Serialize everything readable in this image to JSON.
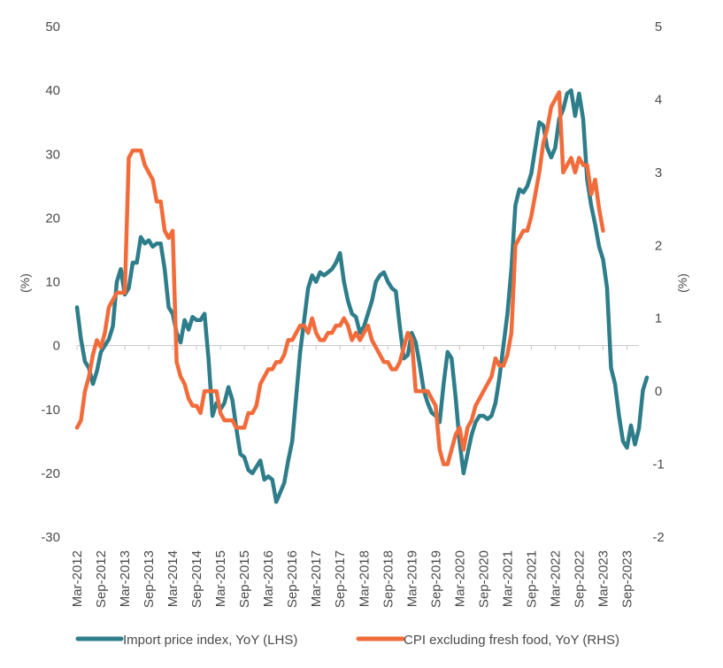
{
  "chart_data": {
    "type": "line",
    "left_axis": {
      "label": "(%)",
      "ylim": [
        -30,
        50
      ],
      "ticks": [
        "50",
        "40",
        "30",
        "20",
        "10",
        "0",
        "-10",
        "-20",
        "-30"
      ]
    },
    "right_axis": {
      "label": "(%)",
      "ylim": [
        -2,
        5
      ],
      "ticks": [
        "5",
        "4",
        "3",
        "2",
        "1",
        "0",
        "-1",
        "-2"
      ]
    },
    "x_ticks": [
      "Mar-2012",
      "Sep-2012",
      "Mar-2013",
      "Sep-2013",
      "Mar-2014",
      "Sep-2014",
      "Mar-2015",
      "Sep-2015",
      "Mar-2016",
      "Sep-2016",
      "Mar-2017",
      "Sep-2017",
      "Mar-2018",
      "Sep-2018",
      "Mar-2019",
      "Sep-2019",
      "Mar-2020",
      "Sep-2020",
      "Mar-2021",
      "Sep-2021",
      "Mar-2022",
      "Sep-2022",
      "Mar-2023",
      "Sep-2023"
    ],
    "x_range": [
      "2012-03",
      "2023-12"
    ],
    "grid": false,
    "legend_position": "bottom",
    "series": [
      {
        "name": "Import price index, YoY (LHS)",
        "axis": "left",
        "color": "#2e7d8a",
        "points": [
          [
            "2012-03",
            6
          ],
          [
            "2012-04",
            1
          ],
          [
            "2012-05",
            -2.5
          ],
          [
            "2012-06",
            -3.5
          ],
          [
            "2012-07",
            -6
          ],
          [
            "2012-08",
            -4
          ],
          [
            "2012-09",
            -1
          ],
          [
            "2012-10",
            0
          ],
          [
            "2012-11",
            1
          ],
          [
            "2012-12",
            3
          ],
          [
            "2013-01",
            10
          ],
          [
            "2013-02",
            12
          ],
          [
            "2013-03",
            8
          ],
          [
            "2013-04",
            9
          ],
          [
            "2013-05",
            13
          ],
          [
            "2013-06",
            13
          ],
          [
            "2013-07",
            17
          ],
          [
            "2013-08",
            16
          ],
          [
            "2013-09",
            16.5
          ],
          [
            "2013-10",
            15.5
          ],
          [
            "2013-11",
            16
          ],
          [
            "2013-12",
            16
          ],
          [
            "2014-01",
            12
          ],
          [
            "2014-02",
            6
          ],
          [
            "2014-03",
            5
          ],
          [
            "2014-04",
            2
          ],
          [
            "2014-05",
            0.5
          ],
          [
            "2014-06",
            4
          ],
          [
            "2014-07",
            2.5
          ],
          [
            "2014-08",
            4.5
          ],
          [
            "2014-09",
            4
          ],
          [
            "2014-10",
            4
          ],
          [
            "2014-11",
            5
          ],
          [
            "2014-12",
            -2
          ],
          [
            "2015-01",
            -11
          ],
          [
            "2015-02",
            -9
          ],
          [
            "2015-03",
            -10
          ],
          [
            "2015-04",
            -9
          ],
          [
            "2015-05",
            -6.5
          ],
          [
            "2015-06",
            -8.5
          ],
          [
            "2015-07",
            -13
          ],
          [
            "2015-08",
            -17
          ],
          [
            "2015-09",
            -17.5
          ],
          [
            "2015-10",
            -19.5
          ],
          [
            "2015-11",
            -20
          ],
          [
            "2015-12",
            -19
          ],
          [
            "2016-01",
            -18
          ],
          [
            "2016-02",
            -21
          ],
          [
            "2016-03",
            -20.5
          ],
          [
            "2016-04",
            -21
          ],
          [
            "2016-05",
            -24.5
          ],
          [
            "2016-06",
            -23
          ],
          [
            "2016-07",
            -21.5
          ],
          [
            "2016-08",
            -18
          ],
          [
            "2016-09",
            -15
          ],
          [
            "2016-10",
            -8
          ],
          [
            "2016-11",
            -1
          ],
          [
            "2016-12",
            4
          ],
          [
            "2017-01",
            9
          ],
          [
            "2017-02",
            11
          ],
          [
            "2017-03",
            10
          ],
          [
            "2017-04",
            11.5
          ],
          [
            "2017-05",
            11
          ],
          [
            "2017-06",
            11.5
          ],
          [
            "2017-07",
            12
          ],
          [
            "2017-08",
            13
          ],
          [
            "2017-09",
            14.5
          ],
          [
            "2017-10",
            10
          ],
          [
            "2017-11",
            7
          ],
          [
            "2017-12",
            5
          ],
          [
            "2018-01",
            4.5
          ],
          [
            "2018-02",
            2
          ],
          [
            "2018-03",
            3
          ],
          [
            "2018-04",
            5
          ],
          [
            "2018-05",
            7
          ],
          [
            "2018-06",
            10
          ],
          [
            "2018-07",
            11
          ],
          [
            "2018-08",
            11.5
          ],
          [
            "2018-09",
            10
          ],
          [
            "2018-10",
            9
          ],
          [
            "2018-11",
            8.5
          ],
          [
            "2018-12",
            3
          ],
          [
            "2019-01",
            -2
          ],
          [
            "2019-02",
            -1.5
          ],
          [
            "2019-03",
            2
          ],
          [
            "2019-04",
            0.5
          ],
          [
            "2019-05",
            -3
          ],
          [
            "2019-06",
            -7
          ],
          [
            "2019-07",
            -9
          ],
          [
            "2019-08",
            -10.5
          ],
          [
            "2019-09",
            -11
          ],
          [
            "2019-10",
            -12
          ],
          [
            "2019-11",
            -6
          ],
          [
            "2019-12",
            -1
          ],
          [
            "2020-01",
            -2
          ],
          [
            "2020-02",
            -8
          ],
          [
            "2020-03",
            -15
          ],
          [
            "2020-04",
            -20
          ],
          [
            "2020-05",
            -17
          ],
          [
            "2020-06",
            -14
          ],
          [
            "2020-07",
            -12
          ],
          [
            "2020-08",
            -11
          ],
          [
            "2020-09",
            -11
          ],
          [
            "2020-10",
            -11.5
          ],
          [
            "2020-11",
            -11
          ],
          [
            "2020-12",
            -9
          ],
          [
            "2021-01",
            -5
          ],
          [
            "2021-02",
            0
          ],
          [
            "2021-03",
            5
          ],
          [
            "2021-04",
            12
          ],
          [
            "2021-05",
            22
          ],
          [
            "2021-06",
            24.5
          ],
          [
            "2021-07",
            24
          ],
          [
            "2021-08",
            25
          ],
          [
            "2021-09",
            27
          ],
          [
            "2021-10",
            31
          ],
          [
            "2021-11",
            35
          ],
          [
            "2021-12",
            34.5
          ],
          [
            "2022-01",
            31
          ],
          [
            "2022-02",
            29.5
          ],
          [
            "2022-03",
            31
          ],
          [
            "2022-04",
            35.5
          ],
          [
            "2022-05",
            37
          ],
          [
            "2022-06",
            39.5
          ],
          [
            "2022-07",
            40
          ],
          [
            "2022-08",
            36
          ],
          [
            "2022-09",
            39.5
          ],
          [
            "2022-10",
            35.5
          ],
          [
            "2022-11",
            26
          ],
          [
            "2022-12",
            22
          ],
          [
            "2023-01",
            19
          ],
          [
            "2023-02",
            15.5
          ],
          [
            "2023-03",
            13.5
          ],
          [
            "2023-04",
            9
          ],
          [
            "2023-05",
            -3.5
          ],
          [
            "2023-06",
            -6
          ],
          [
            "2023-07",
            -11
          ],
          [
            "2023-08",
            -15
          ],
          [
            "2023-09",
            -16
          ],
          [
            "2023-10",
            -12.5
          ],
          [
            "2023-11",
            -15.5
          ],
          [
            "2023-12",
            -13
          ],
          [
            "2024-01",
            -7
          ],
          [
            "2024-02",
            -5
          ]
        ]
      },
      {
        "name": "CPI excluding fresh food, YoY (RHS)",
        "axis": "right",
        "color": "#f26b3a",
        "points": [
          [
            "2012-03",
            -0.5
          ],
          [
            "2012-04",
            -0.4
          ],
          [
            "2012-05",
            0.0
          ],
          [
            "2012-06",
            0.2
          ],
          [
            "2012-07",
            0.5
          ],
          [
            "2012-08",
            0.7
          ],
          [
            "2012-09",
            0.6
          ],
          [
            "2012-10",
            0.8
          ],
          [
            "2012-11",
            1.15
          ],
          [
            "2012-12",
            1.25
          ],
          [
            "2013-01",
            1.35
          ],
          [
            "2013-02",
            1.35
          ],
          [
            "2013-03",
            1.35
          ],
          [
            "2013-04",
            3.2
          ],
          [
            "2013-05",
            3.3
          ],
          [
            "2013-06",
            3.3
          ],
          [
            "2013-07",
            3.3
          ],
          [
            "2013-08",
            3.1
          ],
          [
            "2013-09",
            3.0
          ],
          [
            "2013-10",
            2.9
          ],
          [
            "2013-11",
            2.6
          ],
          [
            "2013-12",
            2.6
          ],
          [
            "2014-01",
            2.2
          ],
          [
            "2014-02",
            2.1
          ],
          [
            "2014-03",
            2.2
          ],
          [
            "2014-04",
            0.4
          ],
          [
            "2014-05",
            0.2
          ],
          [
            "2014-06",
            0.1
          ],
          [
            "2014-07",
            -0.1
          ],
          [
            "2014-08",
            -0.2
          ],
          [
            "2014-09",
            -0.2
          ],
          [
            "2014-10",
            -0.3
          ],
          [
            "2014-11",
            0.0
          ],
          [
            "2014-12",
            0.0
          ],
          [
            "2015-01",
            0.0
          ],
          [
            "2015-02",
            0.0
          ],
          [
            "2015-03",
            -0.3
          ],
          [
            "2015-04",
            -0.4
          ],
          [
            "2015-05",
            -0.4
          ],
          [
            "2015-06",
            -0.4
          ],
          [
            "2015-07",
            -0.5
          ],
          [
            "2015-08",
            -0.5
          ],
          [
            "2015-09",
            -0.5
          ],
          [
            "2015-10",
            -0.3
          ],
          [
            "2015-11",
            -0.3
          ],
          [
            "2015-12",
            -0.2
          ],
          [
            "2016-01",
            0.1
          ],
          [
            "2016-02",
            0.2
          ],
          [
            "2016-03",
            0.3
          ],
          [
            "2016-04",
            0.3
          ],
          [
            "2016-05",
            0.4
          ],
          [
            "2016-06",
            0.4
          ],
          [
            "2016-07",
            0.5
          ],
          [
            "2016-08",
            0.7
          ],
          [
            "2016-09",
            0.7
          ],
          [
            "2016-10",
            0.8
          ],
          [
            "2016-11",
            0.9
          ],
          [
            "2016-12",
            0.9
          ],
          [
            "2017-01",
            0.8
          ],
          [
            "2017-02",
            1.0
          ],
          [
            "2017-03",
            0.8
          ],
          [
            "2017-04",
            0.7
          ],
          [
            "2017-05",
            0.7
          ],
          [
            "2017-06",
            0.8
          ],
          [
            "2017-07",
            0.8
          ],
          [
            "2017-08",
            0.9
          ],
          [
            "2017-09",
            0.9
          ],
          [
            "2017-10",
            1.0
          ],
          [
            "2017-11",
            0.9
          ],
          [
            "2017-12",
            0.7
          ],
          [
            "2018-01",
            0.8
          ],
          [
            "2018-02",
            0.7
          ],
          [
            "2018-03",
            0.8
          ],
          [
            "2018-04",
            0.9
          ],
          [
            "2018-05",
            0.7
          ],
          [
            "2018-06",
            0.6
          ],
          [
            "2018-07",
            0.5
          ],
          [
            "2018-08",
            0.4
          ],
          [
            "2018-09",
            0.4
          ],
          [
            "2018-10",
            0.3
          ],
          [
            "2018-11",
            0.3
          ],
          [
            "2018-12",
            0.4
          ],
          [
            "2019-01",
            0.6
          ],
          [
            "2019-02",
            0.8
          ],
          [
            "2019-03",
            0.7
          ],
          [
            "2019-04",
            0.0
          ],
          [
            "2019-05",
            0.0
          ],
          [
            "2019-06",
            0.0
          ],
          [
            "2019-07",
            0.0
          ],
          [
            "2019-08",
            -0.1
          ],
          [
            "2019-09",
            -0.2
          ],
          [
            "2019-10",
            -0.8
          ],
          [
            "2019-11",
            -1.0
          ],
          [
            "2019-12",
            -1.0
          ],
          [
            "2020-01",
            -0.8
          ],
          [
            "2020-02",
            -0.6
          ],
          [
            "2020-03",
            -0.5
          ],
          [
            "2020-04",
            -0.8
          ],
          [
            "2020-05",
            -0.5
          ],
          [
            "2020-06",
            -0.4
          ],
          [
            "2020-07",
            -0.2
          ],
          [
            "2020-08",
            -0.1
          ],
          [
            "2020-09",
            0.0
          ],
          [
            "2020-10",
            0.1
          ],
          [
            "2020-11",
            0.2
          ],
          [
            "2020-12",
            0.45
          ],
          [
            "2021-01",
            0.35
          ],
          [
            "2021-02",
            0.35
          ],
          [
            "2021-03",
            0.5
          ],
          [
            "2021-04",
            0.8
          ],
          [
            "2021-05",
            2.0
          ],
          [
            "2021-06",
            2.1
          ],
          [
            "2021-07",
            2.2
          ],
          [
            "2021-08",
            2.2
          ],
          [
            "2021-09",
            2.4
          ],
          [
            "2021-10",
            2.7
          ],
          [
            "2021-11",
            3.0
          ],
          [
            "2021-12",
            3.4
          ],
          [
            "2022-01",
            3.6
          ],
          [
            "2022-02",
            3.9
          ],
          [
            "2022-03",
            4.0
          ],
          [
            "2022-04",
            4.1
          ],
          [
            "2022-05",
            3.0
          ],
          [
            "2022-06",
            3.1
          ],
          [
            "2022-07",
            3.2
          ],
          [
            "2022-08",
            3.0
          ],
          [
            "2022-09",
            3.2
          ],
          [
            "2022-10",
            3.1
          ],
          [
            "2022-11",
            3.1
          ],
          [
            "2022-12",
            2.7
          ],
          [
            "2023-01",
            2.9
          ],
          [
            "2023-02",
            2.5
          ],
          [
            "2023-03",
            2.2
          ]
        ]
      }
    ]
  }
}
